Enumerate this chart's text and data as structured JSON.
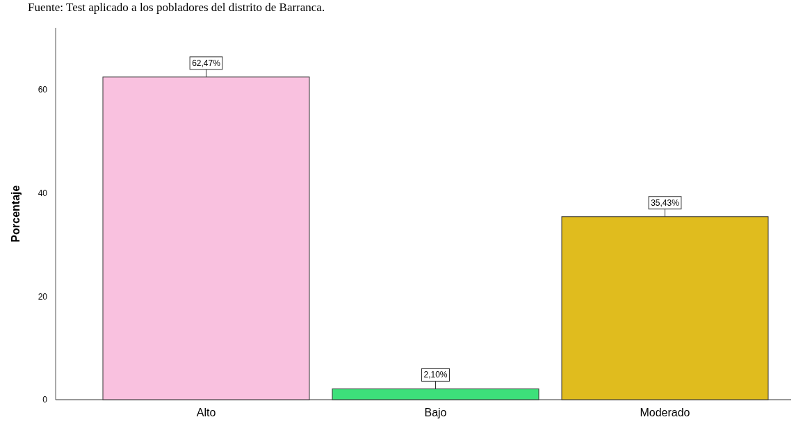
{
  "chart_data": {
    "type": "bar",
    "ylabel": "Porcentaje",
    "annotations": [
      "Fuente: Test aplicado a los pobladores del distrito de Barranca."
    ],
    "categories": [
      "Alto",
      "Bajo",
      "Moderado"
    ],
    "values": [
      62.47,
      2.1,
      35.43
    ],
    "value_labels": [
      "62,47%",
      "2,10%",
      "35,43%"
    ],
    "colors": [
      "#f9c1df",
      "#3de07a",
      "#e0bc1e"
    ],
    "ylim": [
      0,
      72
    ],
    "yticks": [
      0,
      20,
      40,
      60
    ],
    "grid": false
  }
}
